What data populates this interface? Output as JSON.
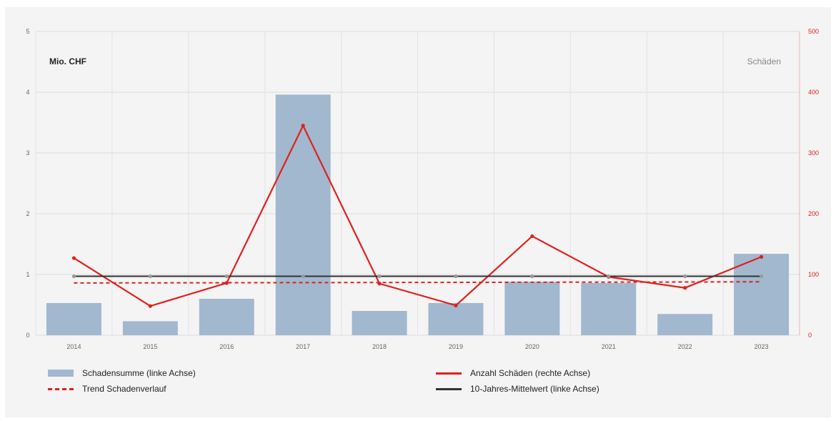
{
  "chart_data": {
    "type": "bar",
    "categories": [
      "2014",
      "2015",
      "2016",
      "2017",
      "2018",
      "2019",
      "2020",
      "2021",
      "2022",
      "2023"
    ],
    "series": [
      {
        "name": "Schadensumme (linke Achse)",
        "kind": "bar",
        "axis": "left",
        "values": [
          0.53,
          0.23,
          0.6,
          3.96,
          0.4,
          0.53,
          0.88,
          0.86,
          0.35,
          1.34
        ],
        "color": "#a1b8cf"
      },
      {
        "name": "Anzahl Schäden (rechte Achse)",
        "kind": "line",
        "axis": "right",
        "values": [
          127,
          48,
          86,
          345,
          85,
          49,
          163,
          96,
          78,
          129
        ],
        "color": "#e0201c"
      },
      {
        "name": "Trend Schadenverlauf",
        "kind": "dashed-line",
        "axis": "left",
        "values": [
          0.86,
          0.862,
          0.864,
          0.866,
          0.868,
          0.87,
          0.872,
          0.874,
          0.876,
          0.88
        ],
        "color": "#e0201c"
      },
      {
        "name": "10-Jahres-Mittelwert (linke Achse)",
        "kind": "line",
        "axis": "left",
        "values": [
          0.97,
          0.97,
          0.97,
          0.97,
          0.97,
          0.97,
          0.97,
          0.97,
          0.97,
          0.97
        ],
        "color": "#333333"
      }
    ],
    "y_left": {
      "label": "Mio. CHF",
      "ticks": [
        "0",
        "1",
        "2",
        "3",
        "4",
        "5"
      ],
      "range": [
        0,
        5
      ]
    },
    "y_right": {
      "label": "Schäden",
      "ticks": [
        "0",
        "100",
        "200",
        "300",
        "400",
        "500"
      ],
      "range": [
        0,
        500
      ],
      "color": "#e0201c"
    },
    "grid": true,
    "legend_position": "bottom"
  }
}
